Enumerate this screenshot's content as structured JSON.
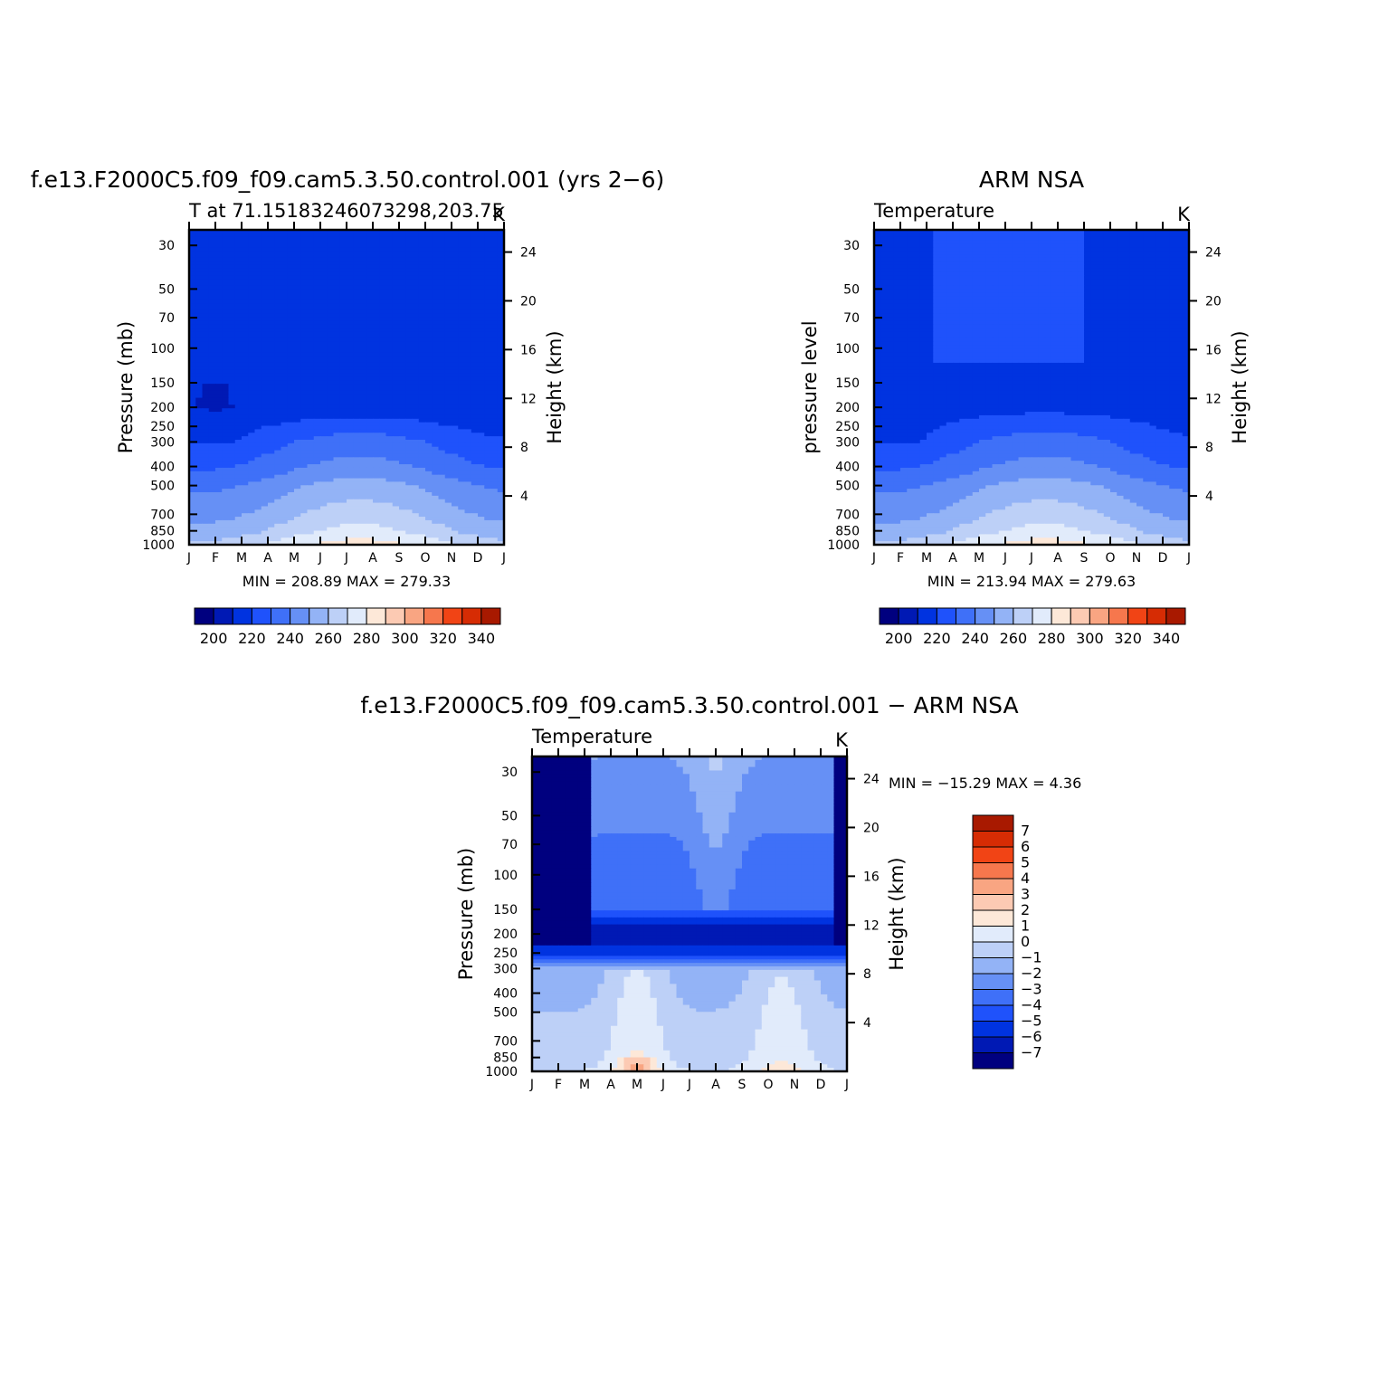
{
  "titles": {
    "top_left": "f.e13.F2000C5.f09_f09.cam5.3.50.control.001 (yrs 2−6)",
    "top_right": "ARM NSA",
    "bottom": "f.e13.F2000C5.f09_f09.cam5.3.50.control.001 − ARM NSA"
  },
  "chart_data": [
    {
      "type": "heatmap",
      "id": "model",
      "subtitle": "T at 71.15183246073298,203.75",
      "units": "K",
      "ylabel": "Pressure (mb)",
      "y2label": "Height (km)",
      "stats": "MIN = 208.89 MAX = 279.33",
      "x_ticks": [
        "J",
        "F",
        "M",
        "A",
        "M",
        "J",
        "J",
        "A",
        "S",
        "O",
        "N",
        "D",
        "J"
      ],
      "y_ticks": [
        30,
        50,
        70,
        100,
        150,
        200,
        250,
        300,
        400,
        500,
        700,
        850,
        1000
      ],
      "y2_ticks": [
        4,
        8,
        12,
        16,
        20,
        24
      ],
      "ylim": [
        1000,
        25
      ],
      "levels": [
        200,
        210,
        220,
        230,
        240,
        250,
        260,
        270,
        280,
        290,
        300,
        310,
        320,
        330,
        340
      ],
      "colorbar_labels": [
        200,
        220,
        240,
        260,
        280,
        300,
        320,
        340
      ],
      "profile": [
        [
          25,
          212
        ],
        [
          100,
          214
        ],
        [
          200,
          213
        ],
        [
          300,
          228
        ],
        [
          400,
          236
        ],
        [
          500,
          246
        ],
        [
          700,
          256
        ],
        [
          850,
          263
        ],
        [
          1000,
          274
        ]
      ],
      "seasonal_amplitude": [
        [
          25,
          -1
        ],
        [
          200,
          -1
        ],
        [
          300,
          -8
        ],
        [
          500,
          -9
        ],
        [
          1000,
          -12
        ]
      ]
    },
    {
      "type": "heatmap",
      "id": "obs",
      "subtitle": "Temperature",
      "units": "K",
      "ylabel": "pressure level",
      "y2label": "Height (km)",
      "stats": "MIN = 213.94 MAX = 279.63",
      "x_ticks": [
        "J",
        "F",
        "M",
        "A",
        "M",
        "J",
        "J",
        "A",
        "S",
        "O",
        "N",
        "D",
        "J"
      ],
      "y_ticks": [
        30,
        50,
        70,
        100,
        150,
        200,
        250,
        300,
        400,
        500,
        700,
        850,
        1000
      ],
      "y2_ticks": [
        4,
        8,
        12,
        16,
        20,
        24
      ],
      "ylim": [
        1000,
        25
      ],
      "levels": [
        200,
        210,
        220,
        230,
        240,
        250,
        260,
        270,
        280,
        290,
        300,
        310,
        320,
        330,
        340
      ],
      "colorbar_labels": [
        200,
        220,
        240,
        260,
        280,
        300,
        320,
        340
      ],
      "profile": [
        [
          25,
          219
        ],
        [
          100,
          218
        ],
        [
          200,
          216
        ],
        [
          300,
          228
        ],
        [
          400,
          236
        ],
        [
          500,
          246
        ],
        [
          700,
          256
        ],
        [
          850,
          263
        ],
        [
          1000,
          274
        ]
      ],
      "seasonal_amplitude": [
        [
          25,
          -1
        ],
        [
          200,
          -1
        ],
        [
          300,
          -8
        ],
        [
          500,
          -9
        ],
        [
          1000,
          -12
        ]
      ]
    },
    {
      "type": "heatmap",
      "id": "diff",
      "subtitle": "Temperature",
      "units": "K",
      "ylabel": "Pressure (mb)",
      "y2label": "Height (km)",
      "stats": "MIN = −15.29 MAX =    4.36",
      "x_ticks": [
        "J",
        "F",
        "M",
        "A",
        "M",
        "J",
        "J",
        "A",
        "S",
        "O",
        "N",
        "D",
        "J"
      ],
      "y_ticks": [
        30,
        50,
        70,
        100,
        150,
        200,
        250,
        300,
        400,
        500,
        700,
        850,
        1000
      ],
      "y2_ticks": [
        4,
        8,
        12,
        16,
        20,
        24
      ],
      "ylim": [
        1000,
        25
      ],
      "levels": [
        -7,
        -6,
        -5,
        -4,
        -3,
        -2,
        -1,
        0,
        1,
        2,
        3,
        4,
        5,
        6,
        7
      ],
      "colorbar_labels": [
        "7",
        "6",
        "5",
        "4",
        "3",
        "2",
        "1",
        "0",
        "−1",
        "−2",
        "−3",
        "−4",
        "−5",
        "−6",
        "−7"
      ],
      "profile": [
        [
          25,
          -2
        ],
        [
          150,
          -4
        ],
        [
          200,
          -7
        ],
        [
          260,
          -5
        ],
        [
          300,
          -1.5
        ],
        [
          500,
          -1
        ],
        [
          850,
          -0.5
        ],
        [
          1000,
          0
        ]
      ]
    }
  ],
  "palette": [
    "#00007f",
    "#0019b4",
    "#0033e0",
    "#1f52fb",
    "#3f70f8",
    "#6690f5",
    "#93b3f6",
    "#bdd0f7",
    "#e1ebfb",
    "#fde8d8",
    "#fccab3",
    "#f9a582",
    "#f6774d",
    "#f14415",
    "#d62c04",
    "#a81900",
    "#7d0000"
  ],
  "colors": {
    "axis": "#000000",
    "background": "#ffffff"
  }
}
